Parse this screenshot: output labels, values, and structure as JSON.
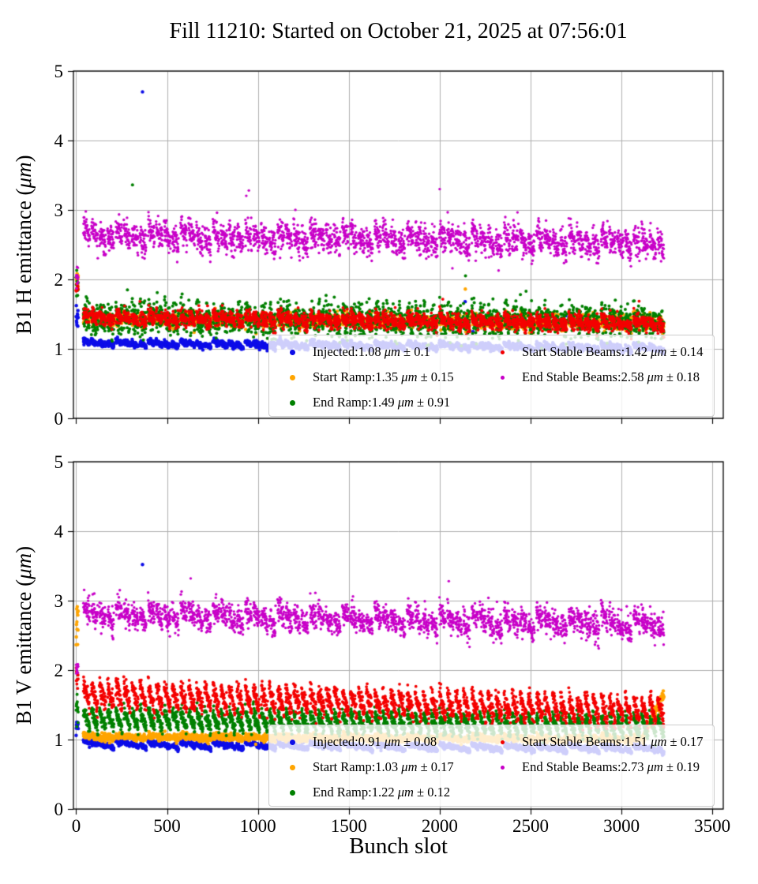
{
  "title": "Fill 11210: Started on October 21, 2025 at 07:56:01",
  "xlabel": "Bunch slot",
  "unit": "μm",
  "plus_minus": "±",
  "axes": {
    "x_ticks": [
      "0",
      "500",
      "1000",
      "1500",
      "2000",
      "2500",
      "3000",
      "3500"
    ],
    "y_ticks": [
      "0",
      "1",
      "2",
      "3",
      "4",
      "5"
    ],
    "xlim": [
      -15,
      3560
    ],
    "ylim": [
      0,
      5
    ],
    "grid": true,
    "grid_color": "#b0b0b0"
  },
  "bunch_pattern": {
    "first_batch_bunches": 12,
    "groups": 18,
    "group_start_slot": 40,
    "group_period_slots": 178,
    "subtrains_per_group": 4,
    "bunches_per_subtrain": 36,
    "subtrain_gap_slots": 8
  },
  "chart_data": [
    {
      "type": "scatter",
      "ylabel": "B1 H emittance",
      "ylabel_unit": "μm",
      "legend_position": "lower right",
      "series": [
        {
          "name": "Injected",
          "color": "#0d0de8",
          "radius": 2.2,
          "legend_marker": 7,
          "mean": "1.08",
          "std": "0.1",
          "model": {
            "fb": [
              1.45,
              0.07
            ],
            "base0": 1.13,
            "gslope": 0.004,
            "gdrop": 0.06,
            "sdrop": 0.04,
            "sigma": 0.022,
            "outliers": [
              [
                365,
                4.7
              ],
              [
                2140,
                1.68
              ]
            ],
            "spike_p": 0.004,
            "spike_up": 0.5
          }
        },
        {
          "name": "Start Ramp",
          "color": "#ffa500",
          "radius": 2.2,
          "legend_marker": 7,
          "mean": "1.35",
          "std": "0.15",
          "model": {
            "fb": [
              2.0,
              0.08
            ],
            "base0": 1.45,
            "gslope": 0.003,
            "gdrop": 0.05,
            "sdrop": 0.0,
            "sigma": 0.05,
            "outliers": [
              [
                2141,
                1.86
              ]
            ]
          }
        },
        {
          "name": "End Ramp",
          "color": "#008000",
          "radius": 2.0,
          "legend_marker": 7,
          "mean": "1.49",
          "std": "0.91",
          "model": {
            "fb": [
              1.9,
              0.12
            ],
            "base0": 1.52,
            "gslope": 0.003,
            "gdrop": 0.05,
            "sdrop": 0.1,
            "sigma": 0.11,
            "outliers": [
              [
                310,
                3.36
              ],
              [
                2142,
                2.05
              ]
            ]
          }
        },
        {
          "name": "Start Stable Beams",
          "color": "#f40000",
          "radius": 1.9,
          "legend_marker": 5,
          "mean": "1.42",
          "std": "0.14",
          "model": {
            "fb": [
              1.85,
              0.07
            ],
            "base0": 1.52,
            "gslope": 0.005,
            "gdrop": 0.08,
            "sdrop": 0.06,
            "sigma": 0.055,
            "outliers": [],
            "spike_p": 0.006,
            "spike_up": 0.25
          }
        },
        {
          "name": "End Stable Beams",
          "color": "#c800c8",
          "radius": 1.7,
          "legend_marker": 5,
          "mean": "2.58",
          "std": "0.18",
          "model": {
            "fb": [
              2.05,
              0.1
            ],
            "base0": 2.78,
            "gslope": 0.006,
            "gdrop": 0.18,
            "sdrop": 0.12,
            "sigma": 0.1,
            "outliers": [
              [
                2000,
                3.3
              ],
              [
                950,
                3.28
              ]
            ],
            "spike_p": 0.006,
            "spike_up": 0.3
          }
        }
      ]
    },
    {
      "type": "scatter",
      "ylabel": "B1 V emittance",
      "ylabel_unit": "μm",
      "legend_position": "lower right",
      "series": [
        {
          "name": "Injected",
          "color": "#0d0de8",
          "radius": 2.2,
          "legend_marker": 7,
          "mean": "0.91",
          "std": "0.08",
          "model": {
            "fb": [
              1.2,
              0.05
            ],
            "base0": 0.99,
            "gslope": 0.004,
            "gdrop": 0.08,
            "sdrop": 0.03,
            "sigma": 0.018,
            "outliers": [
              [
                365,
                3.52
              ]
            ]
          }
        },
        {
          "name": "Start Ramp",
          "color": "#ffa500",
          "radius": 2.2,
          "legend_marker": 7,
          "mean": "1.03",
          "std": "0.17",
          "model": {
            "fb": [
              2.7,
              0.2
            ],
            "base0": 1.06,
            "gslope": 0.002,
            "gdrop": 0.04,
            "sdrop": 0.0,
            "sigma": 0.025,
            "outliers": [],
            "ramp_last": {
              "from": 0.3,
              "amp": 0.68
            }
          }
        },
        {
          "name": "End Ramp",
          "color": "#008000",
          "radius": 2.0,
          "legend_marker": 7,
          "mean": "1.22",
          "std": "0.12",
          "model": {
            "fb": [
              1.45,
              0.1
            ],
            "base0": 1.42,
            "gslope": 0.006,
            "gdrop": 0.0,
            "sdrop": 0.25,
            "sigma": 0.05,
            "outliers": []
          }
        },
        {
          "name": "Start Stable Beams",
          "color": "#f40000",
          "radius": 1.9,
          "legend_marker": 5,
          "mean": "1.51",
          "std": "0.17",
          "model": {
            "fb": [
              1.9,
              0.12
            ],
            "base0": 1.8,
            "gslope": 0.013,
            "gdrop": 0.0,
            "sdrop": 0.32,
            "sigma": 0.07,
            "outliers": []
          }
        },
        {
          "name": "End Stable Beams",
          "color": "#c800c8",
          "radius": 1.7,
          "legend_marker": 5,
          "mean": "2.73",
          "std": "0.19",
          "model": {
            "fb": [
              2.03,
              0.06
            ],
            "base0": 2.95,
            "gslope": 0.008,
            "gdrop": 0.2,
            "sdrop": 0.1,
            "sigma": 0.09,
            "outliers": [
              [
                630,
                3.32
              ],
              [
                2050,
                3.28
              ]
            ],
            "spike_p": 0.006,
            "spike_up": 0.3
          }
        }
      ]
    }
  ]
}
